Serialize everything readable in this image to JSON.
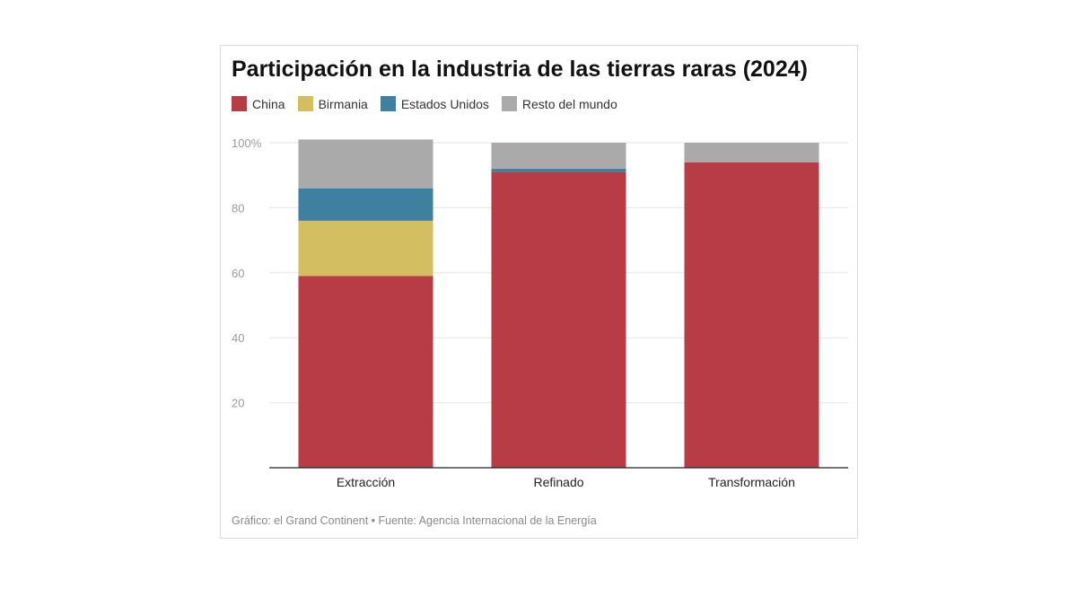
{
  "chart_data": {
    "type": "bar",
    "stacked": true,
    "title": "Participación en la industria de las tierras raras (2024)",
    "xlabel": "",
    "ylabel": "",
    "categories": [
      "Extracción",
      "Refinado",
      "Transformación"
    ],
    "series": [
      {
        "name": "China",
        "color": "#b83c45",
        "values": [
          59,
          91,
          94
        ]
      },
      {
        "name": "Birmania",
        "color": "#d3bf61",
        "values": [
          17,
          0,
          0
        ]
      },
      {
        "name": "Estados Unidos",
        "color": "#3f7fa0",
        "values": [
          10,
          1,
          0
        ]
      },
      {
        "name": "Resto del mundo",
        "color": "#aaaaaa",
        "values": [
          15,
          8,
          6
        ]
      }
    ],
    "ylim": [
      0,
      100
    ],
    "yticks": [
      20,
      40,
      60,
      80,
      100
    ],
    "ytick_labels": [
      "20",
      "40",
      "60",
      "80",
      "100%"
    ],
    "grid": true,
    "legend_position": "top-left"
  },
  "source": "Gráfico: el Grand Continent • Fuente: Agencia Internacional de la Energía"
}
